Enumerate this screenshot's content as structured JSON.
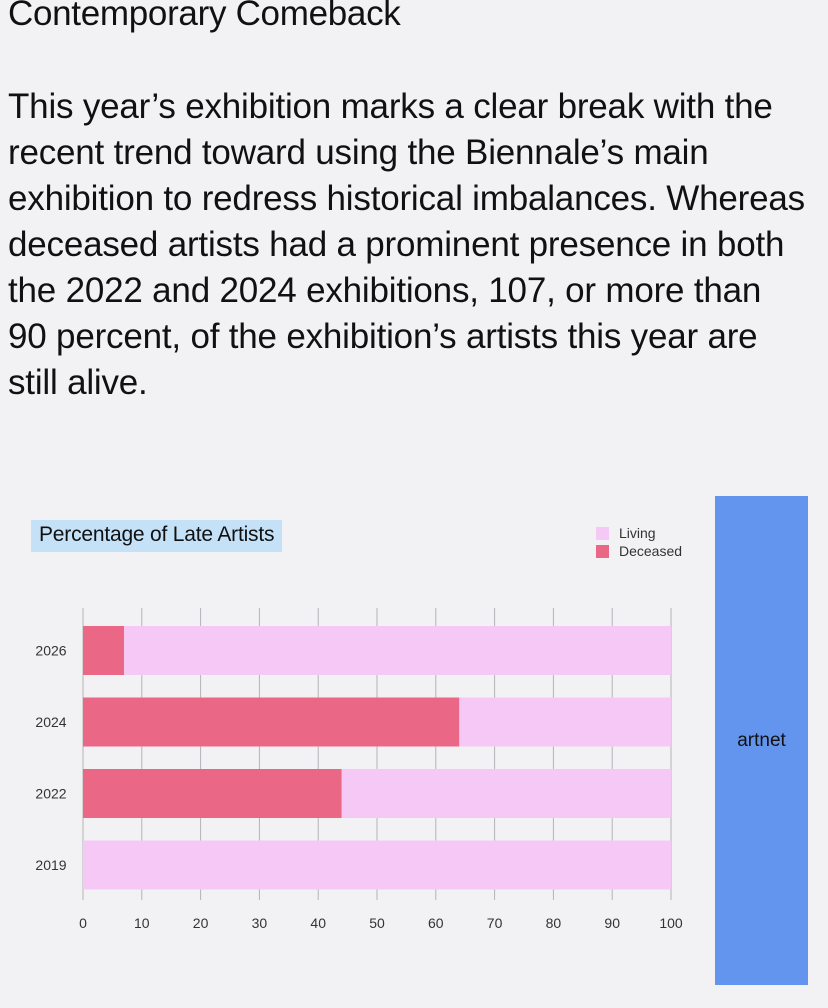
{
  "article": {
    "heading": "Contemporary Comeback",
    "body": "This year’s exhibition marks a clear break with the recent trend toward using the Biennale’s main exhibition to redress historical imbalances. Whereas deceased artists had a prominent presence in both the 2022 and 2024 exhibitions, 107, or more than 90 percent, of the exhibition’s artists this year are still alive."
  },
  "side_panel": {
    "label": "artnet"
  },
  "colors": {
    "living": "#f5c8f6",
    "deceased": "#ea6886",
    "title_bg": "#c4e1f7",
    "panel": "#6495ee"
  },
  "chart_data": {
    "type": "bar",
    "orientation": "horizontal",
    "stacked": true,
    "title": "Percentage of Late Artists",
    "categories": [
      "2026",
      "2024",
      "2022",
      "2019"
    ],
    "series": [
      {
        "name": "Deceased",
        "values": [
          7,
          64,
          44,
          0
        ]
      },
      {
        "name": "Living",
        "values": [
          93,
          36,
          56,
          100
        ]
      }
    ],
    "xlim": [
      0,
      100
    ],
    "xticks": [
      0,
      10,
      20,
      30,
      40,
      50,
      60,
      70,
      80,
      90,
      100
    ],
    "grid": "vertical",
    "legend_position": "top-right",
    "legend_order": [
      "Living",
      "Deceased"
    ]
  }
}
